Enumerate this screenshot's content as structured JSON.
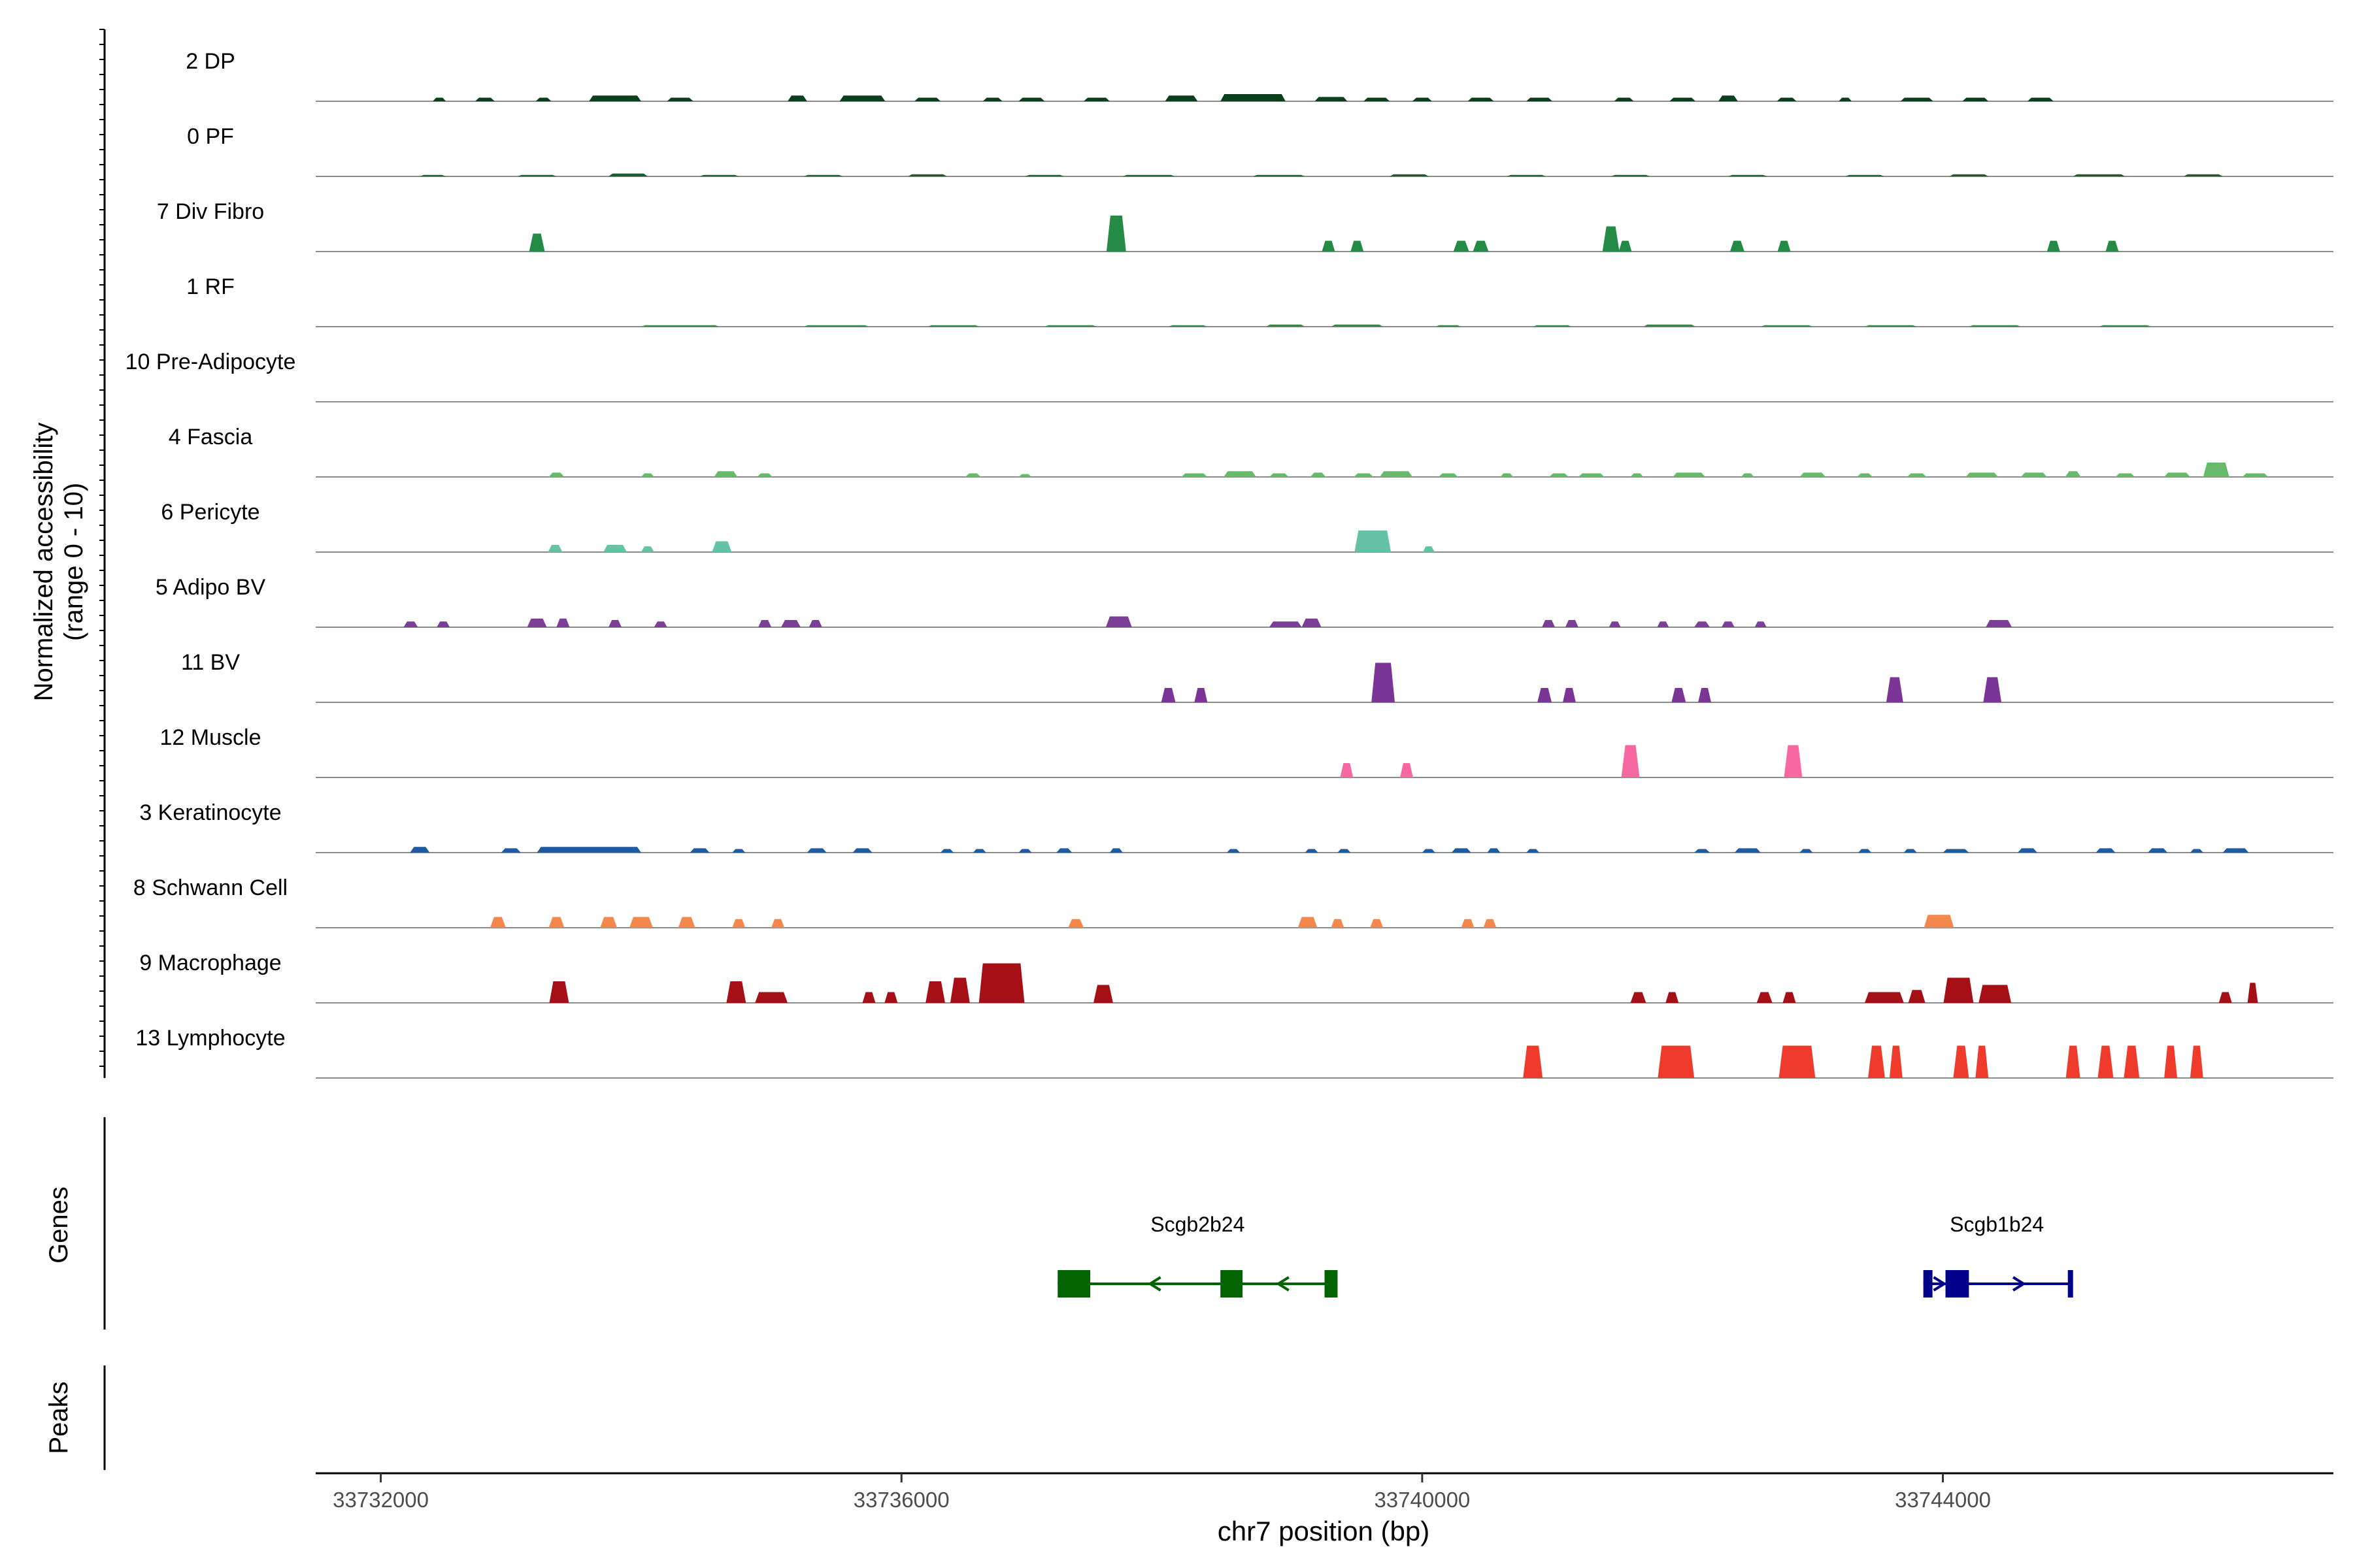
{
  "chart_data": {
    "type": "area",
    "ylabel_line1": "Normalized accessibility",
    "ylabel_line2": "(range 0 - 10)",
    "xlabel": "chr7 position (bp)",
    "xlim": [
      33731500,
      33747000
    ],
    "xticks": [
      {
        "value": 33732000,
        "label": "33732000"
      },
      {
        "value": 33736000,
        "label": "33736000"
      },
      {
        "value": 33740000,
        "label": "33740000"
      },
      {
        "value": 33744000,
        "label": "33744000"
      }
    ],
    "ylim": [
      0,
      10
    ],
    "tracks": [
      {
        "label": "2 DP",
        "color": "#0B3E1C",
        "peaks": [
          [
            33732450,
            100,
            0.5
          ],
          [
            33732800,
            150,
            0.5
          ],
          [
            33733250,
            120,
            0.5
          ],
          [
            33733800,
            400,
            0.8
          ],
          [
            33734300,
            200,
            0.5
          ],
          [
            33735200,
            150,
            0.8
          ],
          [
            33735700,
            350,
            0.8
          ],
          [
            33736200,
            200,
            0.5
          ],
          [
            33736700,
            150,
            0.5
          ],
          [
            33737000,
            200,
            0.5
          ],
          [
            33737500,
            200,
            0.5
          ],
          [
            33738150,
            250,
            0.8
          ],
          [
            33738700,
            500,
            1.0
          ],
          [
            33739300,
            250,
            0.6
          ],
          [
            33739650,
            200,
            0.5
          ],
          [
            33740000,
            150,
            0.5
          ],
          [
            33740450,
            200,
            0.5
          ],
          [
            33740900,
            200,
            0.5
          ],
          [
            33741550,
            150,
            0.5
          ],
          [
            33742000,
            200,
            0.5
          ],
          [
            33742350,
            150,
            0.8
          ],
          [
            33742800,
            150,
            0.5
          ],
          [
            33743250,
            100,
            0.5
          ],
          [
            33743800,
            250,
            0.5
          ],
          [
            33744250,
            200,
            0.5
          ],
          [
            33744750,
            200,
            0.5
          ]
        ]
      },
      {
        "label": "0 PF",
        "color": "#1B5E2E",
        "peaks": [
          [
            33732400,
            200,
            0.2
          ],
          [
            33733200,
            300,
            0.2
          ],
          [
            33733900,
            300,
            0.4
          ],
          [
            33734600,
            300,
            0.2
          ],
          [
            33735400,
            300,
            0.2
          ],
          [
            33736200,
            300,
            0.3
          ],
          [
            33737100,
            300,
            0.2
          ],
          [
            33737900,
            400,
            0.2
          ],
          [
            33738900,
            400,
            0.2
          ],
          [
            33739900,
            300,
            0.3
          ],
          [
            33740800,
            300,
            0.2
          ],
          [
            33741600,
            300,
            0.2
          ],
          [
            33742500,
            300,
            0.2
          ],
          [
            33743400,
            300,
            0.2
          ],
          [
            33744200,
            300,
            0.3
          ],
          [
            33745200,
            400,
            0.3
          ],
          [
            33746000,
            300,
            0.3
          ]
        ]
      },
      {
        "label": "7 Div Fibro",
        "color": "#238B45",
        "peaks": [
          [
            33733200,
            120,
            2.5
          ],
          [
            33737650,
            150,
            5.0
          ],
          [
            33739280,
            100,
            1.5
          ],
          [
            33739500,
            100,
            1.5
          ],
          [
            33740300,
            120,
            1.5
          ],
          [
            33740450,
            120,
            1.5
          ],
          [
            33741450,
            130,
            3.5
          ],
          [
            33741560,
            100,
            1.5
          ],
          [
            33742420,
            110,
            1.5
          ],
          [
            33742780,
            100,
            1.5
          ],
          [
            33744850,
            100,
            1.5
          ],
          [
            33745300,
            100,
            1.5
          ]
        ]
      },
      {
        "label": "1 RF",
        "color": "#2E8B46",
        "peaks": [
          [
            33734300,
            600,
            0.2
          ],
          [
            33735500,
            500,
            0.2
          ],
          [
            33736400,
            400,
            0.2
          ],
          [
            33737300,
            400,
            0.2
          ],
          [
            33738200,
            300,
            0.2
          ],
          [
            33738950,
            300,
            0.3
          ],
          [
            33739500,
            400,
            0.3
          ],
          [
            33740200,
            200,
            0.2
          ],
          [
            33741000,
            300,
            0.2
          ],
          [
            33741900,
            400,
            0.3
          ],
          [
            33742800,
            400,
            0.2
          ],
          [
            33743600,
            400,
            0.2
          ],
          [
            33744400,
            400,
            0.2
          ],
          [
            33745400,
            400,
            0.2
          ]
        ]
      },
      {
        "label": "10 Pre-Adipocyte",
        "color": "#41AB5D",
        "peaks": []
      },
      {
        "label": "4 Fascia",
        "color": "#66BB6A",
        "peaks": [
          [
            33733350,
            120,
            0.6
          ],
          [
            33734050,
            100,
            0.5
          ],
          [
            33734650,
            180,
            0.8
          ],
          [
            33734950,
            120,
            0.5
          ],
          [
            33736550,
            120,
            0.5
          ],
          [
            33736950,
            100,
            0.4
          ],
          [
            33738250,
            200,
            0.5
          ],
          [
            33738600,
            250,
            0.8
          ],
          [
            33738900,
            150,
            0.5
          ],
          [
            33739200,
            120,
            0.6
          ],
          [
            33739550,
            150,
            0.5
          ],
          [
            33739800,
            250,
            0.8
          ],
          [
            33740200,
            150,
            0.5
          ],
          [
            33740650,
            100,
            0.5
          ],
          [
            33741050,
            150,
            0.5
          ],
          [
            33741300,
            200,
            0.5
          ],
          [
            33741650,
            100,
            0.5
          ],
          [
            33742050,
            250,
            0.6
          ],
          [
            33742500,
            100,
            0.5
          ],
          [
            33743000,
            200,
            0.6
          ],
          [
            33743400,
            120,
            0.5
          ],
          [
            33743800,
            150,
            0.5
          ],
          [
            33744300,
            250,
            0.6
          ],
          [
            33744700,
            200,
            0.6
          ],
          [
            33745000,
            120,
            0.8
          ],
          [
            33745400,
            150,
            0.5
          ],
          [
            33745800,
            200,
            0.6
          ],
          [
            33746100,
            200,
            2.0
          ],
          [
            33746400,
            200,
            0.5
          ]
        ]
      },
      {
        "label": "6 Pericyte",
        "color": "#66C2A4",
        "peaks": [
          [
            33733340,
            110,
            1.0
          ],
          [
            33733800,
            180,
            1.0
          ],
          [
            33734050,
            100,
            0.8
          ],
          [
            33734620,
            150,
            1.5
          ],
          [
            33739620,
            280,
            3.0
          ],
          [
            33740050,
            90,
            0.8
          ]
        ]
      },
      {
        "label": "5 Adipo BV",
        "color": "#7B3F98",
        "peaks": [
          [
            33732230,
            110,
            0.8
          ],
          [
            33732480,
            100,
            0.8
          ],
          [
            33733200,
            150,
            1.2
          ],
          [
            33733400,
            100,
            1.2
          ],
          [
            33733800,
            100,
            1.0
          ],
          [
            33734150,
            100,
            0.8
          ],
          [
            33734950,
            100,
            1.0
          ],
          [
            33735150,
            150,
            1.0
          ],
          [
            33735340,
            100,
            1.0
          ],
          [
            33737670,
            200,
            1.5
          ],
          [
            33738950,
            250,
            0.8
          ],
          [
            33739150,
            150,
            1.2
          ],
          [
            33740970,
            100,
            1.0
          ],
          [
            33741150,
            100,
            1.0
          ],
          [
            33741480,
            90,
            0.8
          ],
          [
            33741850,
            90,
            0.8
          ],
          [
            33742150,
            120,
            0.8
          ],
          [
            33742350,
            100,
            0.8
          ],
          [
            33742600,
            90,
            0.8
          ],
          [
            33744430,
            200,
            1.0
          ]
        ]
      },
      {
        "label": "11 BV",
        "color": "#7A3596",
        "peaks": [
          [
            33738050,
            110,
            2.0
          ],
          [
            33738300,
            100,
            2.0
          ],
          [
            33739700,
            180,
            5.5
          ],
          [
            33740940,
            110,
            2.0
          ],
          [
            33741130,
            100,
            2.0
          ],
          [
            33741970,
            110,
            2.0
          ],
          [
            33742170,
            100,
            2.0
          ],
          [
            33743630,
            130,
            3.5
          ],
          [
            33744380,
            140,
            3.5
          ]
        ]
      },
      {
        "label": "12 Muscle",
        "color": "#F768A1",
        "peaks": [
          [
            33739420,
            100,
            2.0
          ],
          [
            33739880,
            100,
            2.0
          ],
          [
            33741600,
            140,
            4.5
          ],
          [
            33742850,
            140,
            4.5
          ]
        ]
      },
      {
        "label": "3 Keratinocyte",
        "color": "#1F5B9E",
        "peaks": [
          [
            33732300,
            150,
            0.8
          ],
          [
            33733000,
            150,
            0.6
          ],
          [
            33733600,
            800,
            0.8
          ],
          [
            33734450,
            150,
            0.6
          ],
          [
            33734750,
            100,
            0.5
          ],
          [
            33735350,
            150,
            0.6
          ],
          [
            33735700,
            150,
            0.6
          ],
          [
            33736350,
            100,
            0.5
          ],
          [
            33736600,
            100,
            0.5
          ],
          [
            33736950,
            100,
            0.5
          ],
          [
            33737250,
            120,
            0.6
          ],
          [
            33737650,
            100,
            0.6
          ],
          [
            33738550,
            100,
            0.5
          ],
          [
            33739150,
            100,
            0.5
          ],
          [
            33739400,
            100,
            0.5
          ],
          [
            33740050,
            100,
            0.5
          ],
          [
            33740300,
            150,
            0.6
          ],
          [
            33740550,
            100,
            0.6
          ],
          [
            33740850,
            100,
            0.5
          ],
          [
            33742150,
            120,
            0.5
          ],
          [
            33742500,
            200,
            0.6
          ],
          [
            33742950,
            100,
            0.5
          ],
          [
            33743400,
            100,
            0.5
          ],
          [
            33743750,
            100,
            0.5
          ],
          [
            33744100,
            200,
            0.5
          ],
          [
            33744650,
            150,
            0.6
          ],
          [
            33745250,
            150,
            0.6
          ],
          [
            33745650,
            150,
            0.6
          ],
          [
            33745950,
            100,
            0.5
          ],
          [
            33746250,
            200,
            0.6
          ]
        ]
      },
      {
        "label": "8 Schwann Cell",
        "color": "#F4874B",
        "peaks": [
          [
            33732900,
            120,
            1.5
          ],
          [
            33733350,
            120,
            1.5
          ],
          [
            33733750,
            130,
            1.5
          ],
          [
            33734000,
            180,
            1.5
          ],
          [
            33734350,
            130,
            1.5
          ],
          [
            33734750,
            100,
            1.2
          ],
          [
            33735050,
            100,
            1.2
          ],
          [
            33737340,
            120,
            1.2
          ],
          [
            33739120,
            150,
            1.5
          ],
          [
            33739350,
            100,
            1.2
          ],
          [
            33739650,
            100,
            1.2
          ],
          [
            33740350,
            100,
            1.2
          ],
          [
            33740520,
            100,
            1.2
          ],
          [
            33743970,
            230,
            1.8
          ]
        ]
      },
      {
        "label": "9 Macrophage",
        "color": "#A50F15",
        "peaks": [
          [
            33733370,
            150,
            3.0
          ],
          [
            33734730,
            150,
            3.0
          ],
          [
            33735000,
            250,
            1.5
          ],
          [
            33735750,
            100,
            1.5
          ],
          [
            33735920,
            100,
            1.5
          ],
          [
            33736260,
            150,
            3.0
          ],
          [
            33736450,
            150,
            3.5
          ],
          [
            33736770,
            350,
            5.5
          ],
          [
            33737550,
            150,
            2.5
          ],
          [
            33741660,
            120,
            1.5
          ],
          [
            33741920,
            100,
            1.5
          ],
          [
            33742630,
            120,
            1.5
          ],
          [
            33742820,
            100,
            1.5
          ],
          [
            33743550,
            300,
            1.5
          ],
          [
            33743800,
            130,
            1.8
          ],
          [
            33744120,
            230,
            3.5
          ],
          [
            33744400,
            250,
            2.5
          ],
          [
            33746170,
            100,
            1.5
          ],
          [
            33746380,
            80,
            2.8
          ]
        ]
      },
      {
        "label": "13 Lymphocyte",
        "color": "#EF3B2C",
        "peaks": [
          [
            33740850,
            150,
            4.5
          ],
          [
            33741950,
            280,
            4.5
          ],
          [
            33742880,
            280,
            4.5
          ],
          [
            33743490,
            130,
            4.5
          ],
          [
            33743640,
            100,
            4.5
          ],
          [
            33744140,
            120,
            4.5
          ],
          [
            33744300,
            100,
            4.5
          ],
          [
            33745000,
            110,
            4.5
          ],
          [
            33745250,
            120,
            4.5
          ],
          [
            33745450,
            120,
            4.5
          ],
          [
            33745750,
            100,
            4.5
          ],
          [
            33745950,
            100,
            4.5
          ]
        ]
      }
    ],
    "genes_label": "Genes",
    "peaks_label": "Peaks",
    "genes": [
      {
        "name": "Scgb2b24",
        "strand": "-",
        "color": "#006400",
        "start": 33737200,
        "end": 33739350,
        "exons": [
          [
            33737200,
            33737450
          ],
          [
            33738450,
            33738620
          ],
          [
            33739250,
            33739350
          ]
        ]
      },
      {
        "name": "Scgb1b24",
        "strand": "+",
        "color": "#00008B",
        "start": 33743850,
        "end": 33744980,
        "exons": [
          [
            33743850,
            33743920
          ],
          [
            33744020,
            33744200
          ],
          [
            33744960,
            33744980
          ]
        ]
      }
    ]
  }
}
